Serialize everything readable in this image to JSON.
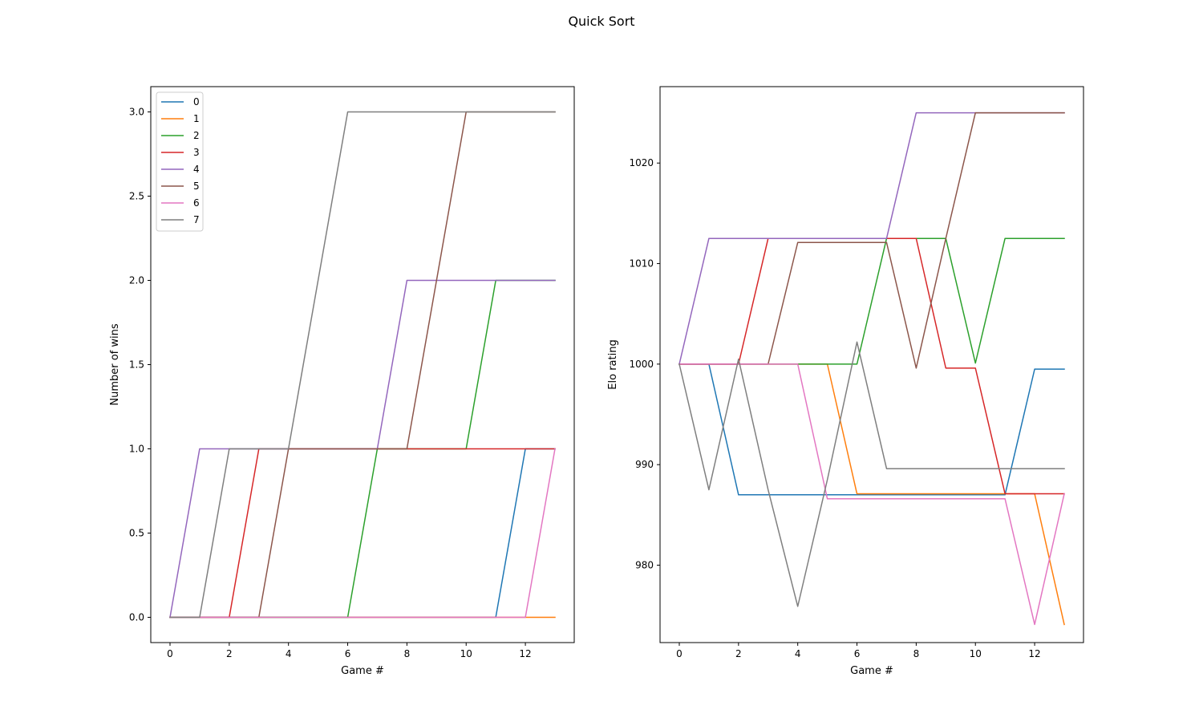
{
  "figure": {
    "suptitle": "Quick Sort"
  },
  "chart_data": [
    {
      "type": "line",
      "title": "",
      "xlabel": "Game #",
      "ylabel": "Number of wins",
      "xlim": [
        -0.65,
        13.65
      ],
      "ylim": [
        -0.15,
        3.15
      ],
      "xticks": [
        0,
        2,
        4,
        6,
        8,
        10,
        12
      ],
      "xtick_labels": [
        "0",
        "2",
        "4",
        "6",
        "8",
        "10",
        "12"
      ],
      "yticks": [
        0,
        0.5,
        1,
        1.5,
        2,
        2.5,
        3
      ],
      "ytick_labels": [
        "0.0",
        "0.5",
        "1.0",
        "1.5",
        "2.0",
        "2.5",
        "3.0"
      ],
      "legend": "upper-left",
      "x": [
        0,
        1,
        2,
        3,
        4,
        5,
        6,
        7,
        8,
        9,
        10,
        11,
        12,
        13
      ],
      "series": [
        {
          "name": "0",
          "color": "#1f77b4",
          "values": [
            0,
            0,
            0,
            0,
            0,
            0,
            0,
            0,
            0,
            0,
            0,
            0,
            1,
            1
          ]
        },
        {
          "name": "1",
          "color": "#ff7f0e",
          "values": [
            0,
            0,
            0,
            0,
            0,
            0,
            0,
            0,
            0,
            0,
            0,
            0,
            0,
            0
          ]
        },
        {
          "name": "2",
          "color": "#2ca02c",
          "values": [
            0,
            0,
            0,
            0,
            0,
            0,
            0,
            1,
            1,
            1,
            1,
            2,
            2,
            2
          ]
        },
        {
          "name": "3",
          "color": "#d62728",
          "values": [
            0,
            0,
            0,
            1,
            1,
            1,
            1,
            1,
            1,
            1,
            1,
            1,
            1,
            1
          ]
        },
        {
          "name": "4",
          "color": "#9467bd",
          "values": [
            0,
            1,
            1,
            1,
            1,
            1,
            1,
            1,
            2,
            2,
            2,
            2,
            2,
            2
          ]
        },
        {
          "name": "5",
          "color": "#8c564b",
          "values": [
            0,
            0,
            0,
            0,
            1,
            1,
            1,
            1,
            1,
            2,
            3,
            3,
            3,
            3
          ]
        },
        {
          "name": "6",
          "color": "#e377c2",
          "values": [
            0,
            0,
            0,
            0,
            0,
            0,
            0,
            0,
            0,
            0,
            0,
            0,
            0,
            1
          ]
        },
        {
          "name": "7",
          "color": "#7f7f7f",
          "values": [
            0,
            0,
            1,
            1,
            1,
            2,
            3,
            3,
            3,
            3,
            3,
            3,
            3,
            3
          ]
        }
      ]
    },
    {
      "type": "line",
      "title": "",
      "xlabel": "Game #",
      "ylabel": "Elo rating",
      "xlim": [
        -0.65,
        13.65
      ],
      "ylim": [
        972.3,
        1027.6
      ],
      "xticks": [
        0,
        2,
        4,
        6,
        8,
        10,
        12
      ],
      "xtick_labels": [
        "0",
        "2",
        "4",
        "6",
        "8",
        "10",
        "12"
      ],
      "yticks": [
        980,
        990,
        1000,
        1010,
        1020
      ],
      "ytick_labels": [
        "980",
        "990",
        "1000",
        "1010",
        "1020"
      ],
      "x": [
        0,
        1,
        2,
        3,
        4,
        5,
        6,
        7,
        8,
        9,
        10,
        11,
        12,
        13
      ],
      "series": [
        {
          "name": "0",
          "color": "#1f77b4",
          "values": [
            1000,
            1000,
            987,
            987,
            987,
            987,
            987,
            987,
            987,
            987,
            987,
            987,
            999.5,
            999.5
          ]
        },
        {
          "name": "1",
          "color": "#ff7f0e",
          "values": [
            1000,
            1000,
            1000,
            1000,
            1000,
            1000,
            987.1,
            987.1,
            987.1,
            987.1,
            987.1,
            987.1,
            987.1,
            974.1
          ]
        },
        {
          "name": "2",
          "color": "#2ca02c",
          "values": [
            1000,
            1000,
            1000,
            1000,
            1000,
            1000,
            1000,
            1012.5,
            1012.5,
            1012.5,
            1000.1,
            1012.5,
            1012.5,
            1012.5
          ]
        },
        {
          "name": "3",
          "color": "#d62728",
          "values": [
            1000,
            1000,
            1000,
            1012.5,
            1012.5,
            1012.5,
            1012.5,
            1012.5,
            1012.5,
            999.6,
            999.6,
            987.1,
            987.1,
            987.1
          ]
        },
        {
          "name": "4",
          "color": "#9467bd",
          "values": [
            1000,
            1012.5,
            1012.5,
            1012.5,
            1012.5,
            1012.5,
            1012.5,
            1012.5,
            1025,
            1025,
            1025,
            1025,
            1025,
            1025
          ]
        },
        {
          "name": "5",
          "color": "#8c564b",
          "values": [
            1000,
            1000,
            1000,
            1000,
            1012.1,
            1012.1,
            1012.1,
            1012.1,
            999.6,
            1012.5,
            1025,
            1025,
            1025,
            1025
          ]
        },
        {
          "name": "6",
          "color": "#e377c2",
          "values": [
            1000,
            1000,
            1000,
            1000,
            1000,
            986.6,
            986.6,
            986.6,
            986.6,
            986.6,
            986.6,
            986.6,
            974.1,
            987.1
          ]
        },
        {
          "name": "7",
          "color": "#7f7f7f",
          "values": [
            1000,
            987.5,
            1000.5,
            987.5,
            975.9,
            988.5,
            1002.2,
            989.6,
            989.6,
            989.6,
            989.6,
            989.6,
            989.6,
            989.6
          ]
        }
      ]
    }
  ]
}
